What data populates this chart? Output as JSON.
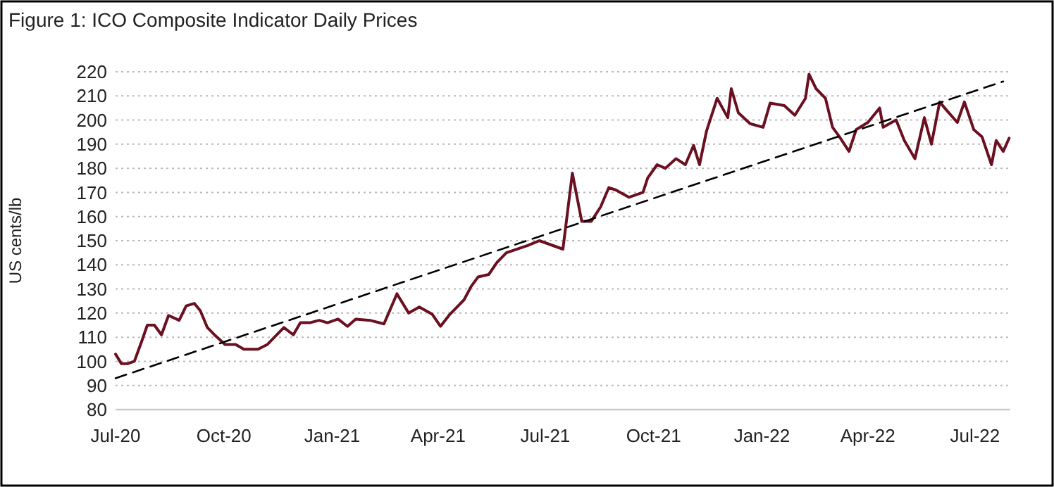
{
  "chart_data": {
    "type": "line",
    "title": "Figure 1: ICO Composite Indicator Daily Prices",
    "ylabel": "US cents/lb",
    "ylim": [
      80,
      220
    ],
    "yticks": [
      80,
      90,
      100,
      110,
      120,
      130,
      140,
      150,
      160,
      170,
      180,
      190,
      200,
      210,
      220
    ],
    "xlim": [
      "2020-07-01",
      "2022-07-31"
    ],
    "xticks": [
      {
        "value": "2020-07-01",
        "label": "Jul-20"
      },
      {
        "value": "2020-10-01",
        "label": "Oct-20"
      },
      {
        "value": "2021-01-01",
        "label": "Jan-21"
      },
      {
        "value": "2021-04-01",
        "label": "Apr-21"
      },
      {
        "value": "2021-07-01",
        "label": "Jul-21"
      },
      {
        "value": "2021-10-01",
        "label": "Oct-21"
      },
      {
        "value": "2022-01-01",
        "label": "Jan-22"
      },
      {
        "value": "2022-04-01",
        "label": "Apr-22"
      },
      {
        "value": "2022-07-01",
        "label": "Jul-22"
      }
    ],
    "grid": "y",
    "marker": "none",
    "series": [
      {
        "color": "#6b1020",
        "line_style": "solid",
        "x": [
          "2020-07-01",
          "2020-07-06",
          "2020-07-11",
          "2020-07-17",
          "2020-07-23",
          "2020-07-28",
          "2020-08-03",
          "2020-08-09",
          "2020-08-15",
          "2020-08-24",
          "2020-08-30",
          "2020-09-06",
          "2020-09-11",
          "2020-09-17",
          "2020-09-23",
          "2020-10-02",
          "2020-10-11",
          "2020-10-18",
          "2020-10-30",
          "2020-11-07",
          "2020-11-15",
          "2020-11-21",
          "2020-11-29",
          "2020-12-05",
          "2020-12-13",
          "2020-12-21",
          "2020-12-28",
          "2021-01-06",
          "2021-01-14",
          "2021-01-21",
          "2021-02-02",
          "2021-02-14",
          "2021-02-25",
          "2021-03-07",
          "2021-03-16",
          "2021-03-27",
          "2021-04-03",
          "2021-04-11",
          "2021-04-17",
          "2021-04-23",
          "2021-04-29",
          "2021-05-05",
          "2021-05-14",
          "2021-05-21",
          "2021-05-29",
          "2021-06-16",
          "2021-06-26",
          "2021-07-16",
          "2021-07-24",
          "2021-07-28",
          "2021-08-01",
          "2021-08-09",
          "2021-08-17",
          "2021-08-24",
          "2021-08-30",
          "2021-09-10",
          "2021-09-22",
          "2021-09-26",
          "2021-10-04",
          "2021-10-11",
          "2021-10-20",
          "2021-10-28",
          "2021-11-04",
          "2021-11-09",
          "2021-11-15",
          "2021-11-24",
          "2021-12-03",
          "2021-12-06",
          "2021-12-12",
          "2021-12-22",
          "2022-01-02",
          "2022-01-08",
          "2022-01-20",
          "2022-01-29",
          "2022-02-07",
          "2022-02-10",
          "2022-02-16",
          "2022-02-24",
          "2022-03-02",
          "2022-03-08",
          "2022-03-16",
          "2022-03-22",
          "2022-04-01",
          "2022-04-11",
          "2022-04-14",
          "2022-04-25",
          "2022-05-02",
          "2022-05-11",
          "2022-05-19",
          "2022-05-25",
          "2022-06-01",
          "2022-06-07",
          "2022-06-16",
          "2022-06-22",
          "2022-06-30",
          "2022-07-07",
          "2022-07-15",
          "2022-07-19",
          "2022-07-25",
          "2022-07-30"
        ],
        "values": [
          103,
          99,
          99,
          100,
          108,
          115,
          115,
          111,
          119,
          117,
          123,
          124,
          121,
          114,
          111,
          107,
          107,
          105,
          105,
          107,
          111,
          114,
          111,
          116,
          116,
          117,
          116,
          117.5,
          114.5,
          117.5,
          117,
          115.5,
          128,
          120,
          122.5,
          119.5,
          114.5,
          119.5,
          122.5,
          125.5,
          131,
          135,
          136,
          141,
          145,
          148,
          150,
          146.5,
          178,
          168,
          158,
          158,
          164,
          172,
          171,
          168,
          170,
          176,
          181.5,
          180,
          184,
          181.5,
          189.5,
          181.5,
          195.5,
          209,
          201,
          213,
          203,
          198.5,
          197,
          207,
          206,
          202,
          209,
          219,
          213,
          209,
          197,
          193,
          187,
          196,
          199,
          205,
          197,
          200,
          191.5,
          184,
          201,
          190,
          207.5,
          204,
          199,
          207.5,
          196,
          193,
          181.5,
          191.5,
          187,
          192.5
        ]
      },
      {
        "color": "#000000",
        "line_style": "dashed",
        "x": [
          "2020-07-01",
          "2022-07-25"
        ],
        "values": [
          93,
          216
        ]
      }
    ]
  }
}
